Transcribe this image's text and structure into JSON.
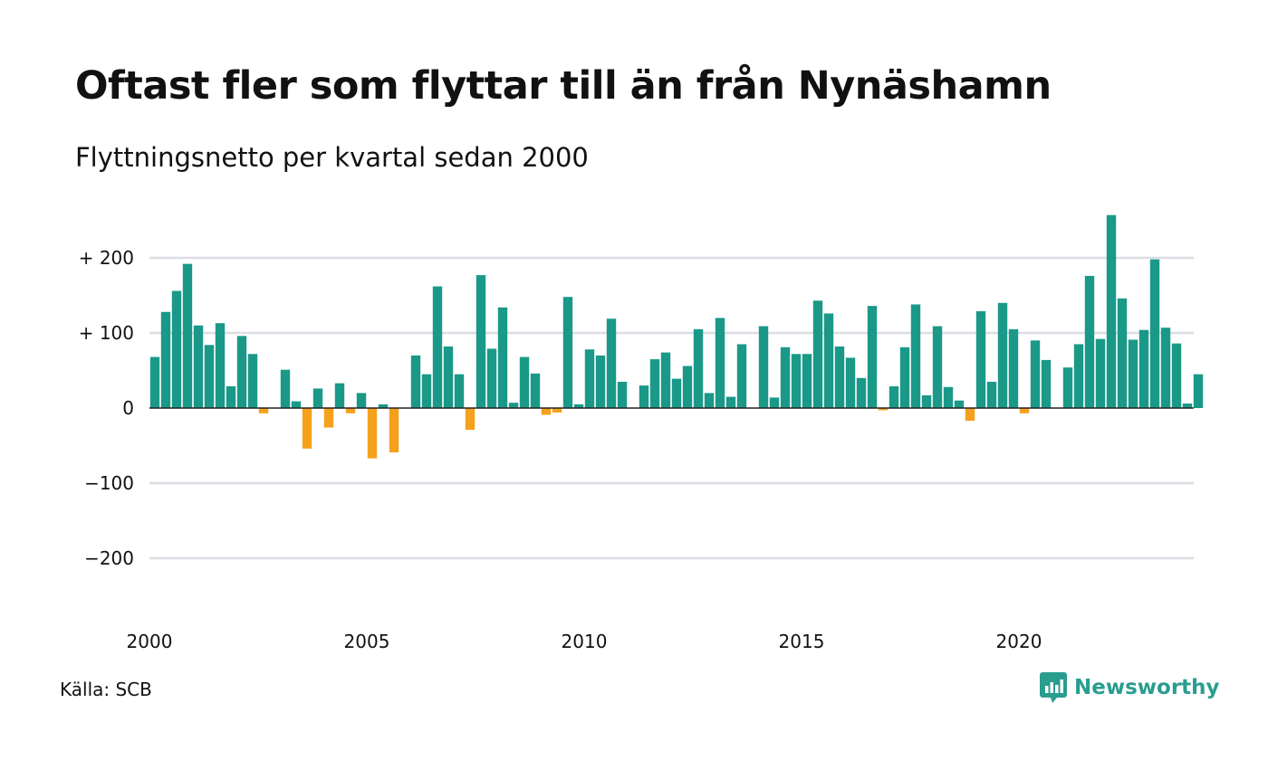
{
  "title": "Oftast fler som flyttar till än från Nynäshamn",
  "subtitle": "Flyttningsnetto per kvartal sedan 2000",
  "source": "Källa: SCB",
  "brand": {
    "name": "Newsworthy",
    "icon": "newsworthy-logo-icon"
  },
  "colors": {
    "positive": "#1a9988",
    "negative": "#f5a11c",
    "grid": "#dcdce6",
    "zero_line": "#222222",
    "brand": "#2a9d8f"
  },
  "chart_data": {
    "type": "bar",
    "x_start": 2000,
    "x_step": 0.25,
    "xticks": [
      2000,
      2005,
      2010,
      2015,
      2020
    ],
    "xtick_labels": [
      "2000",
      "2005",
      "2010",
      "2015",
      "2020"
    ],
    "ylim": [
      -280,
      260
    ],
    "yticks": [
      200,
      100,
      0,
      -100,
      -200
    ],
    "ytick_labels": [
      "+ 200",
      "+ 100",
      "0",
      "−100",
      "−200"
    ],
    "grid": true,
    "values": [
      68,
      128,
      156,
      192,
      110,
      84,
      113,
      29,
      96,
      72,
      -7,
      0,
      51,
      9,
      -54,
      26,
      -26,
      33,
      -7,
      20,
      -67,
      5,
      -59,
      0,
      70,
      45,
      162,
      82,
      45,
      -29,
      177,
      79,
      134,
      7,
      68,
      46,
      -9,
      -6,
      148,
      5,
      78,
      70,
      119,
      35,
      0,
      30,
      65,
      74,
      39,
      56,
      105,
      20,
      120,
      15,
      85,
      0,
      109,
      14,
      81,
      72,
      72,
      143,
      126,
      82,
      67,
      40,
      136,
      -3,
      29,
      81,
      138,
      17,
      109,
      28,
      10,
      -17,
      129,
      35,
      140,
      105,
      -7,
      90,
      64,
      0,
      54,
      85,
      176,
      92,
      257,
      146,
      91,
      104,
      198,
      107,
      86,
      6,
      45
    ]
  }
}
